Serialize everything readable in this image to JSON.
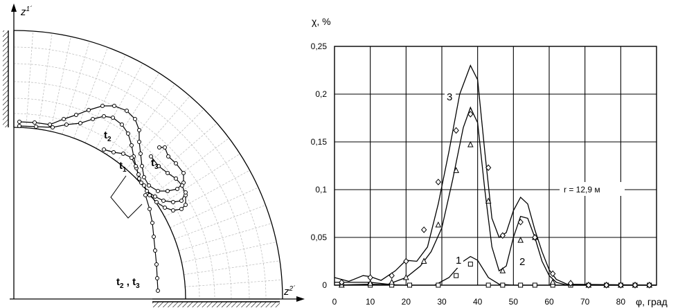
{
  "left_panel": {
    "axis_z1": {
      "base": "z",
      "sup": "1´"
    },
    "axis_z2": {
      "base": "z",
      "sup": "2´"
    },
    "labels": {
      "t2": {
        "base": "t",
        "sub": "2"
      },
      "t3": {
        "base": "t",
        "sub": "3"
      },
      "t1": {
        "base": "t",
        "sub": "1"
      },
      "t2t3": {
        "t2_base": "t",
        "t2_sub": "2",
        "sep": " , ",
        "t3_base": "t",
        "t3_sub": "3"
      }
    }
  },
  "chart_data": {
    "type": "line",
    "ylabel": "χ, %",
    "xlabel": "φ, град",
    "annotation": "r = 12,9 м",
    "xlim": [
      0,
      90
    ],
    "ylim": [
      0,
      0.25
    ],
    "xticks": [
      0,
      10,
      20,
      30,
      40,
      50,
      60,
      70,
      80
    ],
    "xtick_labels": [
      "0",
      "10",
      "20",
      "30",
      "40",
      "50",
      "60",
      "70",
      "80"
    ],
    "yticks": [
      0,
      0.05,
      0.1,
      0.15,
      0.2,
      0.25
    ],
    "ytick_labels": [
      "0",
      "0,05",
      "0,1",
      "0,15",
      "0,2",
      "0,25"
    ],
    "grid": true,
    "curve_labels": [
      "1",
      "2",
      "3"
    ],
    "series": [
      {
        "name": "1",
        "curve": [
          [
            0,
            0
          ],
          [
            10,
            0.001
          ],
          [
            20,
            0
          ],
          [
            28,
            0
          ],
          [
            32,
            0.008
          ],
          [
            36,
            0.025
          ],
          [
            38,
            0.03
          ],
          [
            40,
            0.026
          ],
          [
            43,
            0.008
          ],
          [
            46,
            0.001
          ],
          [
            50,
            0
          ],
          [
            90,
            0
          ]
        ],
        "markers": {
          "symbol": "square",
          "points": [
            [
              2,
              0
            ],
            [
              10,
              0
            ],
            [
              16,
              0
            ],
            [
              21,
              0
            ],
            [
              29,
              0
            ],
            [
              34,
              0.01
            ],
            [
              38,
              0.022
            ],
            [
              43,
              0
            ],
            [
              47,
              0
            ],
            [
              52,
              0
            ],
            [
              56,
              0
            ],
            [
              61,
              0
            ],
            [
              66,
              0
            ],
            [
              71,
              0
            ],
            [
              76,
              0
            ],
            [
              80,
              0
            ],
            [
              84,
              0
            ],
            [
              88,
              0
            ]
          ]
        }
      },
      {
        "name": "2",
        "curve": [
          [
            0,
            0.003
          ],
          [
            10,
            0.003
          ],
          [
            15,
            0.001
          ],
          [
            20,
            0.008
          ],
          [
            24,
            0.02
          ],
          [
            27,
            0.035
          ],
          [
            30,
            0.06
          ],
          [
            33,
            0.11
          ],
          [
            36,
            0.165
          ],
          [
            38,
            0.186
          ],
          [
            40,
            0.17
          ],
          [
            42,
            0.1
          ],
          [
            44,
            0.04
          ],
          [
            46,
            0.015
          ],
          [
            48,
            0.02
          ],
          [
            50,
            0.05
          ],
          [
            52,
            0.072
          ],
          [
            54,
            0.07
          ],
          [
            56,
            0.05
          ],
          [
            58,
            0.025
          ],
          [
            60,
            0.01
          ],
          [
            62,
            0.003
          ],
          [
            65,
            0
          ],
          [
            90,
            0
          ]
        ],
        "markers": {
          "symbol": "triangle",
          "points": [
            [
              2,
              0
            ],
            [
              10,
              0.002
            ],
            [
              16,
              0.003
            ],
            [
              20,
              0.008
            ],
            [
              25,
              0.025
            ],
            [
              29,
              0.063
            ],
            [
              34,
              0.12
            ],
            [
              38,
              0.147
            ],
            [
              43,
              0.088
            ],
            [
              47,
              0.015
            ],
            [
              52,
              0.047
            ],
            [
              56,
              0.05
            ],
            [
              61,
              0.003
            ],
            [
              66,
              0.002
            ],
            [
              71,
              0
            ],
            [
              76,
              0
            ],
            [
              80,
              0
            ],
            [
              84,
              0
            ],
            [
              88,
              0
            ]
          ]
        }
      },
      {
        "name": "3",
        "curve": [
          [
            0,
            0.008
          ],
          [
            4,
            0.004
          ],
          [
            8,
            0.01
          ],
          [
            10,
            0.009
          ],
          [
            13,
            0.005
          ],
          [
            17,
            0.015
          ],
          [
            20,
            0.026
          ],
          [
            23,
            0.025
          ],
          [
            26,
            0.04
          ],
          [
            29,
            0.085
          ],
          [
            32,
            0.14
          ],
          [
            35,
            0.2
          ],
          [
            38,
            0.23
          ],
          [
            40,
            0.215
          ],
          [
            42,
            0.14
          ],
          [
            44,
            0.07
          ],
          [
            46,
            0.05
          ],
          [
            48,
            0.055
          ],
          [
            50,
            0.078
          ],
          [
            52,
            0.092
          ],
          [
            54,
            0.085
          ],
          [
            56,
            0.058
          ],
          [
            58,
            0.035
          ],
          [
            60,
            0.016
          ],
          [
            62,
            0.006
          ],
          [
            65,
            0.001
          ],
          [
            90,
            0
          ]
        ],
        "markers": {
          "symbol": "diamond",
          "points": [
            [
              2,
              0.003
            ],
            [
              10,
              0.008
            ],
            [
              16,
              0.01
            ],
            [
              20,
              0.025
            ],
            [
              25,
              0.058
            ],
            [
              29,
              0.108
            ],
            [
              34,
              0.162
            ],
            [
              38,
              0.179
            ],
            [
              43,
              0.123
            ],
            [
              47,
              0.052
            ],
            [
              52,
              0.066
            ],
            [
              56,
              0.05
            ],
            [
              61,
              0.012
            ],
            [
              66,
              0.002
            ],
            [
              71,
              0
            ],
            [
              76,
              0
            ],
            [
              80,
              0
            ],
            [
              84,
              0
            ],
            [
              88,
              0
            ]
          ]
        }
      }
    ]
  }
}
